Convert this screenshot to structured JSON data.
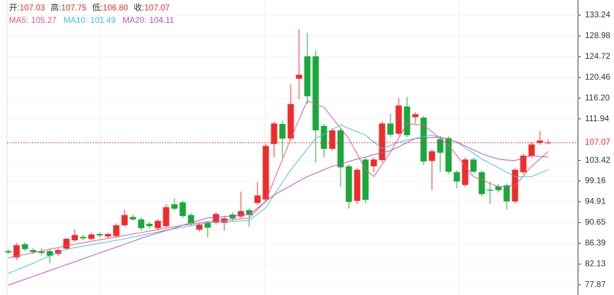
{
  "header": {
    "items": [
      {
        "label": "开:",
        "value": "107.03"
      },
      {
        "label": "高:",
        "value": "107.75"
      },
      {
        "label": "低:",
        "value": "106.80"
      },
      {
        "label": "收:",
        "value": "107.07"
      }
    ],
    "ma_legend": [
      {
        "label": "MA5:",
        "value": "105.27",
        "color": "#e8508f"
      },
      {
        "label": "MA10:",
        "value": "101.49",
        "color": "#3cc4cf"
      },
      {
        "label": "MA20:",
        "value": "104.11",
        "color": "#b352c2"
      }
    ]
  },
  "chart_data": {
    "type": "candlestick",
    "ylim": [
      75.77,
      136.37
    ],
    "yticks": [
      133.24,
      128.98,
      124.72,
      120.46,
      {
        "value": 116.2,
        "label": "116.20"
      },
      111.94,
      103.42,
      99.16,
      94.91,
      90.65,
      86.39,
      82.13,
      77.87
    ],
    "grid": true,
    "up_color": "#f02b2b",
    "down_color": "#19a83a",
    "last_price": 107.07,
    "last_price_color": "#f02b2b",
    "open": [
      84.8,
      83.5,
      86.2,
      85.0,
      84.7,
      84.8,
      84.2,
      85.3,
      87.0,
      87.7,
      87.3,
      88.3,
      87.8,
      87.9,
      90.1,
      91.8,
      91.3,
      90.4,
      89.5,
      89.9,
      94.4,
      94.8,
      92.2,
      89.2,
      90.6,
      90.6,
      90.6,
      92.3,
      91.9,
      93.2,
      94.7,
      95.4,
      106.8,
      110.9,
      107.9,
      120.2,
      124.8,
      124.8,
      110.5,
      105.8,
      109.6,
      102.2,
      95.1,
      103.6,
      102.2,
      103.5,
      111.0,
      108.9,
      114.5,
      112.3,
      112.2,
      103.3,
      107.8,
      108.0,
      101.0,
      98.4,
      103.6,
      101.0,
      97.4,
      98.1,
      98.3,
      95.0,
      101.0,
      104.3,
      107.0,
      107.03
    ],
    "high": [
      85.2,
      86.5,
      86.6,
      85.4,
      85.5,
      85.3,
      85.4,
      87.6,
      89.3,
      88.2,
      88.6,
      88.7,
      88.6,
      90.5,
      93.3,
      92.3,
      91.7,
      90.8,
      91.4,
      94.4,
      95.6,
      95.2,
      92.6,
      90.6,
      91.0,
      92.8,
      91.9,
      92.8,
      97.0,
      93.6,
      99.0,
      106.8,
      111.4,
      111.6,
      119.0,
      130.4,
      129.6,
      126.0,
      110.9,
      110.0,
      110.0,
      102.6,
      101.9,
      104.0,
      104.0,
      111.4,
      113.0,
      116.2,
      116.5,
      113.3,
      112.6,
      105.7,
      108.5,
      108.4,
      101.4,
      104.0,
      104.0,
      101.4,
      99.0,
      98.6,
      98.7,
      101.9,
      104.8,
      107.2,
      109.4,
      107.75
    ],
    "low": [
      84.2,
      83.0,
      84.8,
      84.2,
      83.9,
      82.3,
      83.8,
      85.0,
      86.7,
      87.0,
      87.0,
      87.6,
      87.4,
      87.5,
      89.8,
      91.0,
      89.0,
      89.4,
      89.0,
      89.5,
      93.1,
      91.5,
      90.0,
      88.8,
      87.6,
      90.2,
      89.0,
      91.0,
      91.5,
      89.8,
      94.3,
      95.0,
      104.0,
      104.0,
      107.5,
      116.0,
      115.0,
      103.0,
      104.0,
      105.4,
      98.0,
      93.5,
      94.5,
      94.6,
      101.0,
      103.0,
      108.2,
      108.5,
      108.2,
      111.0,
      102.5,
      97.3,
      101.0,
      100.6,
      97.7,
      98.0,
      100.7,
      96.0,
      94.5,
      96.8,
      93.4,
      94.6,
      100.6,
      103.9,
      106.6,
      106.8
    ],
    "close": [
      84.5,
      86.0,
      85.2,
      84.6,
      84.4,
      83.8,
      85.0,
      87.3,
      88.1,
      87.4,
      88.2,
      88.0,
      88.3,
      90.1,
      92.2,
      91.3,
      89.5,
      89.9,
      91.0,
      93.8,
      93.5,
      92.0,
      90.5,
      90.2,
      89.6,
      92.4,
      91.5,
      91.5,
      93.0,
      92.2,
      96.2,
      106.4,
      111.0,
      107.9,
      115.0,
      121.0,
      116.6,
      109.6,
      105.8,
      109.6,
      102.0,
      94.9,
      101.5,
      95.3,
      103.6,
      111.0,
      108.7,
      114.7,
      108.6,
      112.9,
      103.2,
      105.3,
      105.0,
      101.1,
      99.1,
      103.6,
      101.1,
      96.5,
      97.2,
      97.3,
      95.0,
      101.5,
      104.4,
      106.7,
      107.5,
      107.07
    ],
    "series": [
      {
        "name": "MA5",
        "color": "#e8508f",
        "values": [
          83.4,
          83.8,
          84.1,
          84.5,
          84.8,
          85.2,
          85.5,
          85.9,
          86.2,
          86.5,
          86.8,
          87.1,
          87.4,
          87.7,
          88.0,
          88.3,
          88.6,
          88.9,
          89.2,
          89.5,
          89.8,
          90.1,
          90.3,
          90.6,
          90.8,
          91.0,
          91.1,
          91.3,
          91.4,
          91.6,
          93.3,
          95.1,
          99.4,
          103.6,
          107.9,
          111.8,
          115.7,
          115.0,
          114.3,
          112.2,
          110.0,
          107.9,
          104.7,
          101.5,
          100.1,
          102.6,
          105.1,
          108.0,
          111.0,
          110.8,
          110.7,
          109.3,
          107.9,
          106.5,
          104.4,
          102.2,
          100.1,
          99.4,
          98.7,
          98.0,
          98.1,
          98.3,
          100.2,
          102.2,
          103.7,
          105.27
        ]
      },
      {
        "name": "MA10",
        "color": "#3cc4cf",
        "values": [
          80.2,
          80.9,
          81.6,
          82.3,
          83.1,
          83.8,
          84.5,
          85.2,
          85.5,
          85.8,
          86.1,
          86.4,
          86.7,
          87.0,
          87.3,
          87.7,
          88.0,
          88.4,
          88.7,
          89.1,
          89.4,
          89.7,
          90.0,
          90.3,
          90.6,
          90.7,
          90.8,
          90.9,
          91.0,
          91.1,
          92.4,
          93.7,
          96.3,
          98.9,
          101.5,
          103.6,
          105.8,
          107.9,
          108.8,
          109.8,
          110.7,
          110.0,
          109.3,
          108.6,
          107.2,
          105.8,
          106.5,
          107.2,
          107.6,
          107.9,
          108.3,
          108.6,
          108.1,
          107.7,
          107.2,
          106.0,
          104.9,
          103.7,
          102.8,
          101.9,
          101.0,
          100.1,
          100.1,
          100.1,
          100.8,
          101.49
        ]
      },
      {
        "name": "MA20",
        "color": "#b352c2",
        "values": [
          77.8,
          78.4,
          79.0,
          79.6,
          80.2,
          80.8,
          81.4,
          82.0,
          82.6,
          83.2,
          83.8,
          84.4,
          85.0,
          85.6,
          86.2,
          86.8,
          87.4,
          88.0,
          88.5,
          89.0,
          89.5,
          90.1,
          90.6,
          91.1,
          91.6,
          91.7,
          91.9,
          92.0,
          92.2,
          92.3,
          93.6,
          95.0,
          96.3,
          97.3,
          98.2,
          99.2,
          100.1,
          100.8,
          101.5,
          102.2,
          102.7,
          103.2,
          103.7,
          104.1,
          104.6,
          105.0,
          105.4,
          106.2,
          107.1,
          107.9,
          108.0,
          108.1,
          108.2,
          107.7,
          107.2,
          106.4,
          105.6,
          104.8,
          104.2,
          103.7,
          103.5,
          103.4,
          103.9,
          104.4,
          104.2,
          104.11
        ]
      }
    ]
  }
}
